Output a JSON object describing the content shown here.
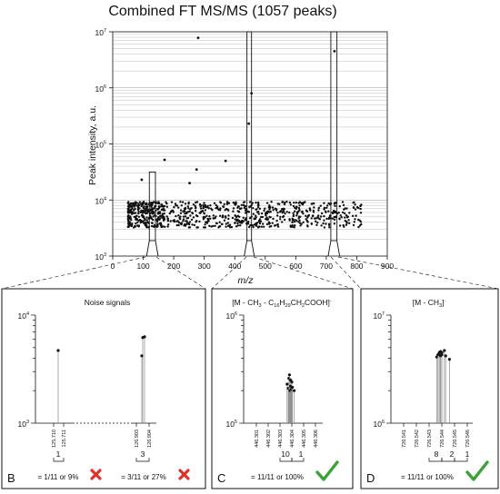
{
  "main": {
    "title": "Combined FT MS/MS (1057 peaks)",
    "xlabel": "m/z",
    "ylabel": "Peak intensity, a.u.",
    "x_ticks": [
      "0",
      "100",
      "200",
      "300",
      "400",
      "500",
      "600",
      "700",
      "800",
      "900"
    ],
    "y_tick_base": [
      "10",
      "10",
      "10",
      "10",
      "10"
    ],
    "y_tick_exp": [
      "3",
      "4",
      "5",
      "6",
      "7"
    ]
  },
  "panel_b": {
    "letter": "B",
    "title": "Noise signals",
    "y_top_base": "10",
    "y_top_exp": "4",
    "y_bot_base": "10",
    "y_bot_exp": "3",
    "ticks_left": [
      "125.710",
      "125.711"
    ],
    "ticks_right": [
      "126.903",
      "126.904"
    ],
    "count_left": "1",
    "count_right": "3",
    "result_left": "= 1/11 or 9%",
    "result_right": "= 3/11 or 27%"
  },
  "panel_c": {
    "letter": "C",
    "title_pre": "[M - CH",
    "title_s1": "3",
    "title_mid": " - C",
    "title_s2": "16",
    "title_mid2": "H",
    "title_s3": "29",
    "title_mid3": "CH",
    "title_s4": "2",
    "title_post": "COOH]",
    "title_sup": "-",
    "y_top_base": "10",
    "y_top_exp": "6",
    "y_bot_base": "10",
    "y_bot_exp": "5",
    "ticks": [
      "446.301",
      "446.302",
      "446.303",
      "446.304",
      "446.305",
      "446.306"
    ],
    "count_a": "10",
    "count_b": "1",
    "result": "= 11/11 or 100%"
  },
  "panel_d": {
    "letter": "D",
    "title_pre": "[M - CH",
    "title_sub": "3",
    "title_post": "]",
    "title_sup": "-",
    "y_top_base": "10",
    "y_top_exp": "7",
    "y_bot_base": "10",
    "y_bot_exp": "6",
    "ticks": [
      "726.541",
      "726.542",
      "726.543",
      "726.544",
      "726.545",
      "726.546"
    ],
    "count_a": "8",
    "count_b": "2",
    "count_c": "1",
    "result": "= 11/11 or 100%"
  },
  "colors": {
    "check": "#3aa335",
    "cross": "#e0312a",
    "ink": "#111111"
  },
  "icons": [
    "red-x-icon",
    "green-check-icon"
  ],
  "chart_data": {
    "type": "scatter",
    "title": "Combined FT MS/MS (1057 peaks)",
    "xlabel": "m/z",
    "ylabel": "Peak intensity, a.u.",
    "xlim": [
      0,
      900
    ],
    "ylim": [
      1000,
      10000000
    ],
    "y_scale": "log",
    "grid": "horizontal",
    "highlight_windows_mz": [
      [
        120,
        140
      ],
      [
        440,
        455
      ],
      [
        715,
        735
      ]
    ],
    "noise_band_mz": [
      50,
      820
    ],
    "noise_band_intensity": [
      3000,
      11000
    ],
    "notable_points": [
      {
        "x": 280,
        "y": 7800000
      },
      {
        "x": 727,
        "y": 4500000
      },
      {
        "x": 455,
        "y": 800000
      },
      {
        "x": 446,
        "y": 230000
      },
      {
        "x": 170,
        "y": 52000
      },
      {
        "x": 370,
        "y": 50000
      },
      {
        "x": 275,
        "y": 35000
      },
      {
        "x": 95,
        "y": 23000
      },
      {
        "x": 252,
        "y": 20000
      }
    ],
    "panels": [
      {
        "panel": "B",
        "title": "Noise signals",
        "ylim": [
          1000,
          10000
        ],
        "peaks": [
          {
            "x": 125.7105,
            "y": 4700
          },
          {
            "x": 126.9036,
            "y": 6200
          },
          {
            "x": 126.9038,
            "y": 6300
          },
          {
            "x": 126.9035,
            "y": 4200
          }
        ]
      },
      {
        "panel": "C",
        "ylim": [
          100000,
          1000000
        ],
        "peaks": [
          {
            "x": 446.3036,
            "y": 230000
          },
          {
            "x": 446.3037,
            "y": 210000
          },
          {
            "x": 446.30375,
            "y": 260000
          },
          {
            "x": 446.3038,
            "y": 280000
          },
          {
            "x": 446.30385,
            "y": 200000
          },
          {
            "x": 446.3039,
            "y": 250000
          },
          {
            "x": 446.3039,
            "y": 220000
          },
          {
            "x": 446.30395,
            "y": 205000
          },
          {
            "x": 446.304,
            "y": 240000
          },
          {
            "x": 446.30405,
            "y": 215000
          },
          {
            "x": 446.3042,
            "y": 200000
          }
        ]
      },
      {
        "panel": "D",
        "ylim": [
          1000000,
          10000000
        ],
        "peaks": [
          {
            "x": 726.5436,
            "y": 4100000
          },
          {
            "x": 726.5437,
            "y": 4300000
          },
          {
            "x": 726.5438,
            "y": 4500000
          },
          {
            "x": 726.5438,
            "y": 4400000
          },
          {
            "x": 726.5439,
            "y": 4600000
          },
          {
            "x": 726.5439,
            "y": 4200000
          },
          {
            "x": 726.544,
            "y": 4500000
          },
          {
            "x": 726.544,
            "y": 4300000
          },
          {
            "x": 726.5442,
            "y": 4700000
          },
          {
            "x": 726.5443,
            "y": 4200000
          },
          {
            "x": 726.5446,
            "y": 3900000
          }
        ]
      }
    ]
  }
}
